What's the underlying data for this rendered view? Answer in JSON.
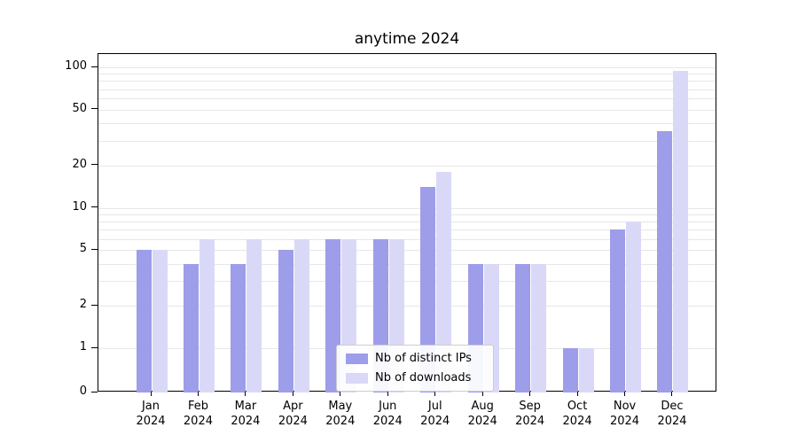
{
  "chart_data": {
    "type": "bar",
    "title": "anytime 2024",
    "scale": "symlog",
    "grid": true,
    "categories": [
      "Jan",
      "Feb",
      "Mar",
      "Apr",
      "May",
      "Jun",
      "Jul",
      "Aug",
      "Sep",
      "Oct",
      "Nov",
      "Dec"
    ],
    "year_label": "2024",
    "series": [
      {
        "name": "Nb of distinct IPs",
        "color": "#9d9dea",
        "values": [
          5,
          4,
          4,
          5,
          6,
          6,
          14,
          4,
          4,
          1,
          7,
          35
        ]
      },
      {
        "name": "Nb of downloads",
        "color": "#d9d9f7",
        "values": [
          5,
          6,
          6,
          6,
          6,
          6,
          18,
          4,
          4,
          1,
          8,
          95
        ]
      }
    ],
    "ylim": [
      0,
      120
    ],
    "y_ticks": [
      0,
      1,
      2,
      5,
      10,
      20,
      50,
      100
    ],
    "gridlines": [
      1,
      2,
      3,
      4,
      5,
      6,
      7,
      8,
      9,
      10,
      20,
      30,
      40,
      50,
      60,
      70,
      80,
      90,
      100
    ],
    "legend": {
      "position": "lower center",
      "entries": [
        "Nb of distinct IPs",
        "Nb of downloads"
      ]
    }
  }
}
